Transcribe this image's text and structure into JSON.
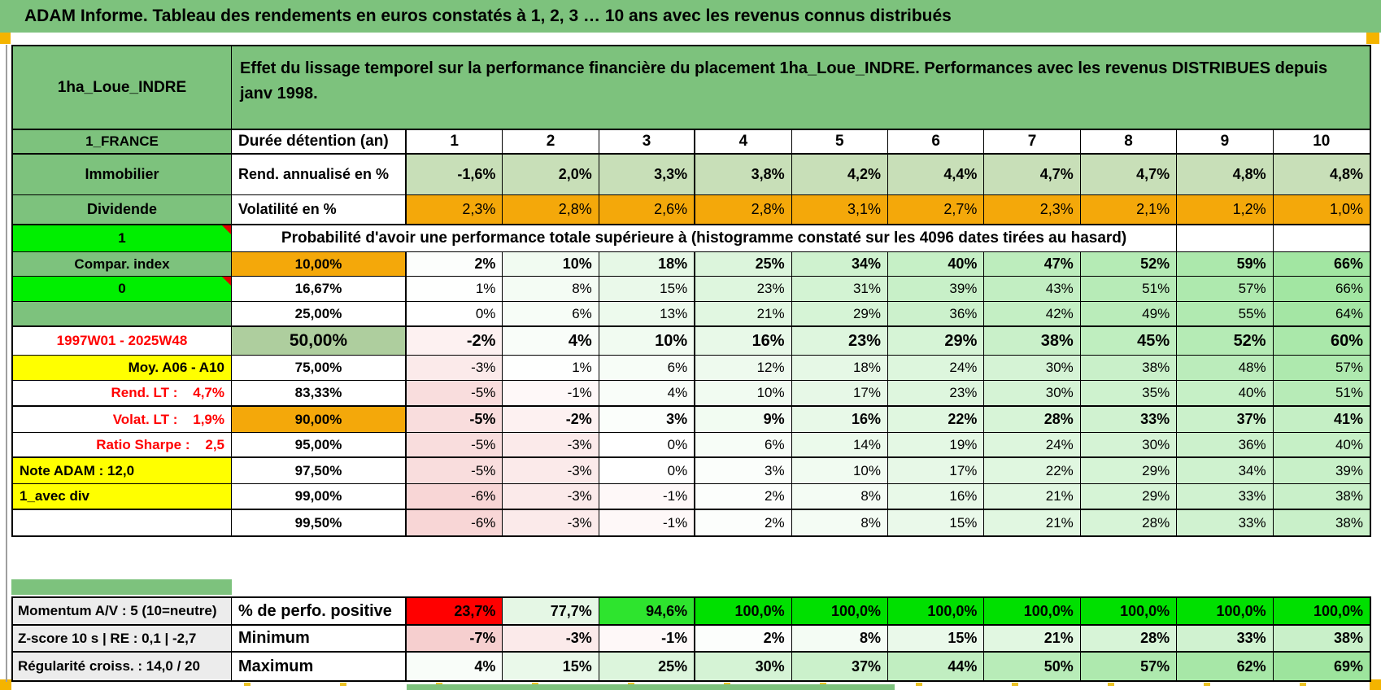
{
  "title": "ADAM Informe. Tableau des rendements en euros constatés à 1, 2, 3 … 10 ans avec les revenus connus distribués",
  "colors": {
    "labelGreen": "#7dc27d",
    "bright": "#00ef00",
    "orange": "#f4a80a",
    "sage": "#aece9e",
    "pale": "#c8dfb8",
    "yellow": "#ffff00",
    "gray": "#ececec",
    "redText": "#ff0000",
    "redCell": "#ff0000",
    "vividGreen": "#00e000",
    "marker": "#f4b400",
    "scale_neg": "#f5c8c8",
    "scale_pos": "#9ce49c"
  },
  "header": {
    "placement": "1ha_Loue_INDRE",
    "description": "Effet du lissage temporel sur la performance financière du placement 1ha_Loue_INDRE. Performances avec les revenus DISTRIBUES depuis janv 1998.",
    "country": "1_FRANCE",
    "duration_label": "Durée détention (an)",
    "years": [
      "1",
      "2",
      "3",
      "4",
      "5",
      "6",
      "7",
      "8",
      "9",
      "10"
    ]
  },
  "immobilier": {
    "label": "Immobilier",
    "metric": "Rend. annualisé en %",
    "values": [
      "-1,6%",
      "2,0%",
      "3,3%",
      "3,8%",
      "4,2%",
      "4,4%",
      "4,7%",
      "4,7%",
      "4,8%",
      "4,8%"
    ]
  },
  "dividende": {
    "label": "Dividende",
    "metric": "Volatilité en %",
    "values": [
      "2,3%",
      "2,8%",
      "2,6%",
      "2,8%",
      "3,1%",
      "2,7%",
      "2,3%",
      "2,1%",
      "1,2%",
      "1,0%"
    ]
  },
  "probability": {
    "left_value": "1",
    "title": "Probabilité d'avoir une performance totale supérieure à (histogramme constaté sur les 4096 dates tirées au hasard)",
    "rows": [
      {
        "left": "Compar. index",
        "left_style": "green",
        "threshold": "10,00%",
        "threshold_style": "orange",
        "bold": true,
        "values": [
          2,
          10,
          18,
          25,
          34,
          40,
          47,
          52,
          59,
          66
        ]
      },
      {
        "left": "0",
        "left_style": "bright",
        "threshold": "16,67%",
        "values": [
          1,
          8,
          15,
          23,
          31,
          39,
          43,
          51,
          57,
          66
        ]
      },
      {
        "left": "",
        "left_style": "green",
        "threshold": "25,00%",
        "thick_bottom": true,
        "values": [
          0,
          6,
          13,
          21,
          29,
          36,
          42,
          49,
          55,
          64
        ]
      },
      {
        "left": "1997W01 - 2025W48",
        "left_style": "redtext",
        "threshold": "50,00%",
        "threshold_style": "sage",
        "bold": true,
        "big": true,
        "values": [
          -2,
          4,
          10,
          16,
          23,
          29,
          38,
          45,
          52,
          60
        ]
      },
      {
        "left": "Moy. A06 - A10",
        "left_style": "yellow_right",
        "threshold": "75,00%",
        "values": [
          -3,
          1,
          6,
          12,
          18,
          24,
          30,
          38,
          48,
          57
        ]
      },
      {
        "left": "Rend. LT :    4,7%",
        "left_style": "redtext_right",
        "threshold": "83,33%",
        "thick_bottom": true,
        "values": [
          -5,
          -1,
          4,
          10,
          17,
          23,
          30,
          35,
          40,
          51
        ]
      },
      {
        "left": "Volat. LT :    1,9%",
        "left_style": "redtext_right",
        "threshold": "90,00%",
        "threshold_style": "orange",
        "bold": true,
        "values": [
          -5,
          -2,
          3,
          9,
          16,
          22,
          28,
          33,
          37,
          41
        ]
      },
      {
        "left": "Ratio Sharpe :    2,5",
        "left_style": "redtext_right",
        "threshold": "95,00%",
        "thick_bottom": true,
        "values": [
          -5,
          -3,
          0,
          6,
          14,
          19,
          24,
          30,
          36,
          40
        ]
      },
      {
        "left": "Note ADAM : 12,0",
        "left_style": "yellow_left",
        "threshold": "97,50%",
        "values": [
          -5,
          -3,
          0,
          3,
          10,
          17,
          22,
          29,
          34,
          39
        ]
      },
      {
        "left": "1_avec div",
        "left_style": "yellow_left",
        "threshold": "99,00%",
        "thick_bottom": true,
        "values": [
          -6,
          -3,
          -1,
          2,
          8,
          16,
          21,
          29,
          33,
          38
        ]
      },
      {
        "left": "",
        "left_style": "white",
        "threshold": "99,50%",
        "values": [
          -6,
          -3,
          -1,
          2,
          8,
          15,
          21,
          28,
          33,
          38
        ]
      }
    ]
  },
  "footer": {
    "rows": [
      {
        "left": "Momentum A/V : 5 (10=neutre)",
        "metric": "% de perfo. positive",
        "values": [
          "23,7%",
          "77,7%",
          "94,6%",
          "100,0%",
          "100,0%",
          "100,0%",
          "100,0%",
          "100,0%",
          "100,0%",
          "100,0%"
        ],
        "cell_colors": [
          "#ff0000",
          "#e5f7e5",
          "#2ee42e",
          "#00e000",
          "#00e000",
          "#00e000",
          "#00e000",
          "#00e000",
          "#00e000",
          "#00e000"
        ]
      },
      {
        "left": "Z-score 10 s | RE : 0,1 | -2,7",
        "metric": "Minimum",
        "values": [
          -7,
          -3,
          -1,
          2,
          8,
          15,
          21,
          28,
          33,
          38
        ]
      },
      {
        "left": "Régularité croiss. : 14,0 / 20",
        "metric": "Maximum",
        "values": [
          4,
          15,
          25,
          30,
          37,
          44,
          50,
          57,
          62,
          69
        ]
      }
    ]
  }
}
